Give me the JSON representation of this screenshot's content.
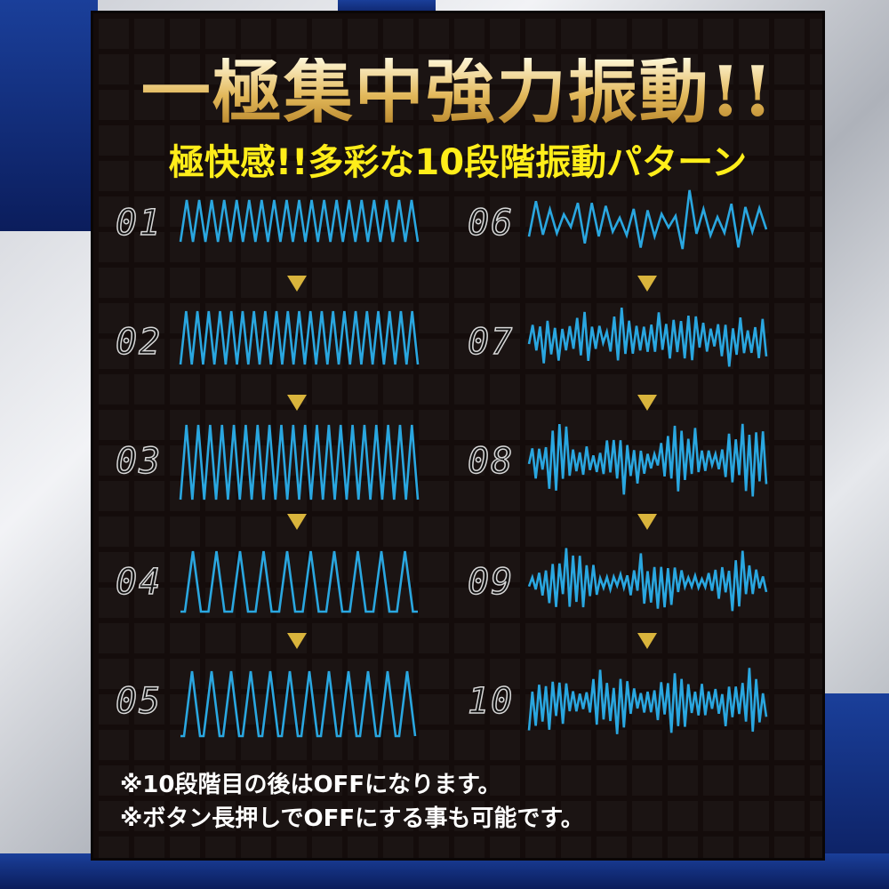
{
  "title": "一極集中強力振動!!",
  "subtitle": "極快感!!多彩な10段階振動パターン",
  "patterns": [
    {
      "label": "01"
    },
    {
      "label": "02"
    },
    {
      "label": "03"
    },
    {
      "label": "04"
    },
    {
      "label": "05"
    },
    {
      "label": "06"
    },
    {
      "label": "07"
    },
    {
      "label": "08"
    },
    {
      "label": "09"
    },
    {
      "label": "10"
    }
  ],
  "notes": [
    "※10段階目の後はOFFになります。",
    "※ボタン長押しでOFFにする事も可能です。"
  ],
  "colors": {
    "wave": "#2aa7e0",
    "arrow": "#d9b43c",
    "subtitle": "#ffee1a",
    "panel": "#140c0b"
  }
}
